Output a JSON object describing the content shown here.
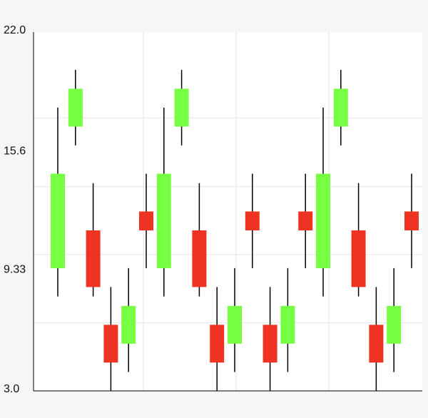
{
  "chart_data": {
    "type": "candlestick",
    "title": "",
    "xlabel": "",
    "ylabel": "",
    "ylim": [
      3.0,
      22.0
    ],
    "y_ticks": [
      {
        "value": 22.0,
        "label": "22.0"
      },
      {
        "value": 15.6,
        "label": "15.6"
      },
      {
        "value": 9.33,
        "label": "9.33"
      },
      {
        "value": 3.0,
        "label": "3.0"
      }
    ],
    "grid": true,
    "legend": "none",
    "colors": {
      "up": "#77ff44",
      "down": "#ee3322",
      "wick": "#000000",
      "grid": "#e6e6e6",
      "plot_bg": "#ffffff",
      "page_bg": "#f6f6f6",
      "axis": "#000000"
    },
    "candles": [
      {
        "x": 1,
        "open": 9.5,
        "close": 14.5,
        "high": 18.0,
        "low": 8.0
      },
      {
        "x": 2,
        "open": 17.0,
        "close": 19.0,
        "high": 20.0,
        "low": 16.0
      },
      {
        "x": 3,
        "open": 11.5,
        "close": 8.5,
        "high": 14.0,
        "low": 8.0
      },
      {
        "x": 4,
        "open": 6.5,
        "close": 4.5,
        "high": 8.5,
        "low": 3.0
      },
      {
        "x": 5,
        "open": 5.5,
        "close": 7.5,
        "high": 9.5,
        "low": 4.0
      },
      {
        "x": 6,
        "open": 12.5,
        "close": 11.5,
        "high": 14.5,
        "low": 9.5
      },
      {
        "x": 7,
        "open": 9.5,
        "close": 14.5,
        "high": 18.0,
        "low": 8.0
      },
      {
        "x": 8,
        "open": 17.0,
        "close": 19.0,
        "high": 20.0,
        "low": 16.0
      },
      {
        "x": 9,
        "open": 11.5,
        "close": 8.5,
        "high": 14.0,
        "low": 8.0
      },
      {
        "x": 10,
        "open": 6.5,
        "close": 4.5,
        "high": 8.5,
        "low": 3.0
      },
      {
        "x": 11,
        "open": 5.5,
        "close": 7.5,
        "high": 9.5,
        "low": 4.0
      },
      {
        "x": 12,
        "open": 12.5,
        "close": 11.5,
        "high": 14.5,
        "low": 9.5
      },
      {
        "x": 13,
        "open": 6.5,
        "close": 4.5,
        "high": 8.5,
        "low": 3.0
      },
      {
        "x": 14,
        "open": 5.5,
        "close": 7.5,
        "high": 9.5,
        "low": 4.0
      },
      {
        "x": 15,
        "open": 12.5,
        "close": 11.5,
        "high": 14.5,
        "low": 9.5
      },
      {
        "x": 16,
        "open": 9.5,
        "close": 14.5,
        "high": 18.0,
        "low": 8.0
      },
      {
        "x": 17,
        "open": 17.0,
        "close": 19.0,
        "high": 20.0,
        "low": 16.0
      },
      {
        "x": 18,
        "open": 11.5,
        "close": 8.5,
        "high": 14.0,
        "low": 8.0
      },
      {
        "x": 19,
        "open": 6.5,
        "close": 4.5,
        "high": 8.5,
        "low": 3.0
      },
      {
        "x": 20,
        "open": 5.5,
        "close": 7.5,
        "high": 9.5,
        "low": 4.0
      },
      {
        "x": 21,
        "open": 12.5,
        "close": 11.5,
        "high": 14.5,
        "low": 9.5
      }
    ]
  }
}
